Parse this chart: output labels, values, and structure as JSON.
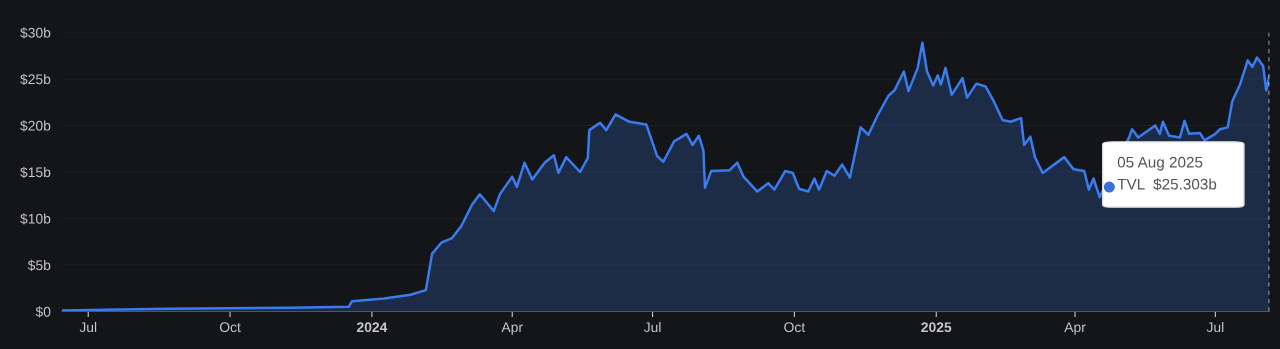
{
  "chart_data": {
    "type": "area",
    "x": [
      "2023-06-14",
      "2023-07-12",
      "2023-08-22",
      "2023-11-09",
      "2023-12-17",
      "2023-12-19",
      "2024-01-09",
      "2024-01-26",
      "2024-02-05",
      "2024-02-09",
      "2024-02-15",
      "2024-02-22",
      "2024-02-28",
      "2024-03-06",
      "2024-03-11",
      "2024-03-20",
      "2024-03-24",
      "2024-04-01",
      "2024-04-04",
      "2024-04-09",
      "2024-04-14",
      "2024-04-22",
      "2024-04-28",
      "2024-05-01",
      "2024-05-06",
      "2024-05-15",
      "2024-05-20",
      "2024-05-21",
      "2024-05-28",
      "2024-06-01",
      "2024-06-07",
      "2024-06-16",
      "2024-06-27",
      "2024-07-04",
      "2024-07-08",
      "2024-07-15",
      "2024-07-23",
      "2024-07-27",
      "2024-07-31",
      "2024-08-03",
      "2024-08-04",
      "2024-08-08",
      "2024-08-20",
      "2024-08-25",
      "2024-08-29",
      "2024-09-07",
      "2024-09-14",
      "2024-09-18",
      "2024-09-25",
      "2024-09-30",
      "2024-10-04",
      "2024-10-10",
      "2024-10-14",
      "2024-10-17",
      "2024-10-22",
      "2024-10-27",
      "2024-11-01",
      "2024-11-06",
      "2024-11-13",
      "2024-11-18",
      "2024-11-24",
      "2024-12-01",
      "2024-12-05",
      "2024-12-11",
      "2024-12-14",
      "2024-12-20",
      "2024-12-23",
      "2024-12-26",
      "2024-12-30",
      "2025-01-02",
      "2025-01-04",
      "2025-01-07",
      "2025-01-11",
      "2025-01-18",
      "2025-01-21",
      "2025-01-27",
      "2025-02-02",
      "2025-02-07",
      "2025-02-13",
      "2025-02-18",
      "2025-02-25",
      "2025-02-27",
      "2025-03-03",
      "2025-03-06",
      "2025-03-11",
      "2025-03-25",
      "2025-03-31",
      "2025-04-07",
      "2025-04-10",
      "2025-04-13",
      "2025-04-17",
      "2025-05-06",
      "2025-05-08",
      "2025-05-12",
      "2025-05-23",
      "2025-05-26",
      "2025-05-28",
      "2025-06-01",
      "2025-06-08",
      "2025-06-11",
      "2025-06-14",
      "2025-06-21",
      "2025-06-24",
      "2025-07-01",
      "2025-07-04",
      "2025-07-09",
      "2025-07-12",
      "2025-07-17",
      "2025-07-22",
      "2025-07-25",
      "2025-07-28",
      "2025-08-01",
      "2025-08-03",
      "2025-08-05"
    ],
    "series": [
      {
        "color": "#3a7bef",
        "values": [
          0.1,
          0.2,
          0.3,
          0.4,
          0.5,
          1.1,
          1.4,
          1.8,
          2.3,
          6.2,
          7.4,
          7.9,
          9.2,
          11.5,
          12.6,
          10.8,
          12.6,
          14.5,
          13.4,
          16.0,
          14.2,
          16.0,
          16.8,
          14.9,
          16.6,
          15.0,
          16.5,
          19.5,
          20.3,
          19.5,
          21.2,
          20.4,
          20.1,
          16.7,
          16.1,
          18.3,
          19.1,
          17.9,
          18.9,
          17.3,
          13.3,
          15.1,
          15.2,
          16.0,
          14.5,
          12.9,
          13.8,
          13.1,
          15.1,
          14.9,
          13.2,
          12.9,
          14.3,
          13.1,
          15.1,
          14.6,
          15.8,
          14.4,
          19.8,
          19.0,
          21.1,
          23.2,
          23.8,
          25.8,
          23.7,
          26.2,
          28.9,
          25.8,
          24.3,
          25.4,
          24.4,
          26.2,
          23.3,
          25.1,
          23.0,
          24.5,
          24.2,
          22.7,
          20.6,
          20.4,
          20.8,
          17.9,
          18.8,
          16.6,
          14.9,
          16.6,
          15.3,
          15.1,
          13.1,
          14.3,
          12.3,
          18.7,
          19.6,
          18.7,
          20.0,
          19.1,
          20.4,
          18.9,
          18.7,
          20.5,
          19.1,
          19.2,
          18.4,
          19.1,
          19.6,
          19.8,
          22.6,
          24.4,
          27.0,
          26.3,
          27.3,
          26.4,
          23.8,
          25.303
        ]
      }
    ],
    "xlim": [
      "2023-06-14",
      "2025-08-05"
    ],
    "xticks": [
      {
        "value": "2023-07-01",
        "label": "Jul"
      },
      {
        "value": "2023-10-01",
        "label": "Oct"
      },
      {
        "value": "2024-01-01",
        "label": "2024"
      },
      {
        "value": "2024-04-01",
        "label": "Apr"
      },
      {
        "value": "2024-07-01",
        "label": "Jul"
      },
      {
        "value": "2024-10-01",
        "label": "Oct"
      },
      {
        "value": "2025-01-01",
        "label": "2025"
      },
      {
        "value": "2025-04-01",
        "label": "Apr"
      },
      {
        "value": "2025-07-01",
        "label": "Jul"
      }
    ],
    "ylim": [
      0,
      30
    ],
    "yticks": [
      {
        "value": 0,
        "label": "$0"
      },
      {
        "value": 5,
        "label": "$5b"
      },
      {
        "value": 10,
        "label": "$10b"
      },
      {
        "value": 15,
        "label": "$15b"
      },
      {
        "value": 20,
        "label": "$20b"
      },
      {
        "value": 25,
        "label": "$25b"
      },
      {
        "value": 30,
        "label": "$30b"
      }
    ],
    "grid": "y",
    "ref_lines": [
      {
        "axis": "x",
        "value": "2025-08-05",
        "color": "#dddddd",
        "line_style": "dashed"
      }
    ],
    "annotations": [
      "05 Aug 2025\nTVL  $25.303b"
    ]
  }
}
